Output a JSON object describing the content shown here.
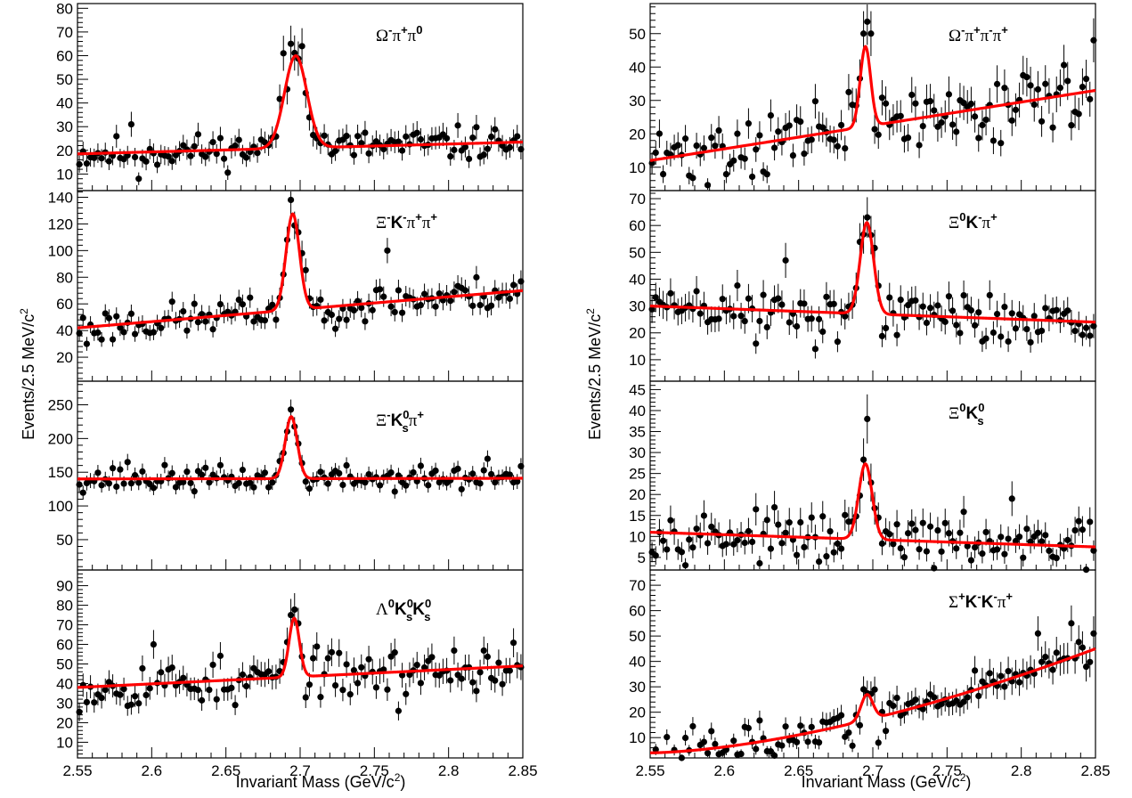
{
  "figure": {
    "left_ylabel": "Events/2.5 MeV/c",
    "right_ylabel": "Events/2.5 MeV/c",
    "ylabel_sup": "2",
    "left_xlabel": "Invariant Mass (GeV/c",
    "right_xlabel": "Invariant Mass (GeV/c",
    "xlabel_sup": "2",
    "xlabel_close": ")",
    "x_tick_labels": [
      "2.55",
      "2.6",
      "2.65",
      "2.7",
      "2.75",
      "2.8",
      "2.85"
    ]
  },
  "colors": {
    "fit": "#ff0000",
    "points": "#000000",
    "frame": "#000000"
  },
  "chart_data": [
    {
      "type": "scatter",
      "id": "omega-pi-pi0",
      "label_parts": [
        [
          "Ω",
          "n"
        ],
        [
          "-",
          "sup"
        ],
        [
          "π",
          "n"
        ],
        [
          "+",
          "sup"
        ],
        [
          "π",
          "n"
        ],
        [
          "0",
          "supb"
        ]
      ],
      "xlim": [
        2.55,
        2.85
      ],
      "ylim": [
        3,
        82
      ],
      "yticks": [
        10,
        20,
        30,
        40,
        50,
        60,
        70,
        80
      ],
      "fit": {
        "peak_mass": 2.697,
        "peak_height": 39,
        "width": 0.0075,
        "bg_start": 18.5,
        "bg_end": 23.5
      },
      "noise": 3.5,
      "seed": 11,
      "notable_points": [
        [
          2.694,
          65
        ],
        [
          2.69,
          61
        ],
        [
          2.7,
          64
        ],
        [
          2.587,
          31
        ],
        [
          2.592,
          8
        ]
      ]
    },
    {
      "type": "scatter",
      "id": "xi-k-pi-pi",
      "label_parts": [
        [
          "Ξ",
          "n"
        ],
        [
          "-",
          "sup"
        ],
        [
          "K",
          "b"
        ],
        [
          "-",
          "sup"
        ],
        [
          "π",
          "n"
        ],
        [
          "+",
          "sup"
        ],
        [
          "π",
          "n"
        ],
        [
          "+",
          "sup"
        ]
      ],
      "xlim": [
        2.55,
        2.85
      ],
      "ylim": [
        2,
        145
      ],
      "yticks": [
        20,
        40,
        60,
        80,
        100,
        120,
        140
      ],
      "fit": {
        "peak_mass": 2.695,
        "peak_height": 72,
        "width": 0.0045,
        "bg_start": 42,
        "bg_end": 70
      },
      "noise": 6.5,
      "seed": 23,
      "notable_points": [
        [
          2.694,
          138
        ],
        [
          2.7,
          98
        ],
        [
          2.76,
          100
        ],
        [
          2.556,
          30
        ]
      ]
    },
    {
      "type": "scatter",
      "id": "xi-ks-pi",
      "label_parts": [
        [
          "Ξ",
          "n"
        ],
        [
          "-",
          "sup"
        ],
        [
          "K",
          "b"
        ],
        [
          "0",
          "supsub"
        ],
        [
          "π",
          "n"
        ],
        [
          "+",
          "sup"
        ]
      ],
      "xlim": [
        2.55,
        2.85
      ],
      "ylim": [
        5,
        285
      ],
      "yticks": [
        50,
        100,
        150,
        200,
        250
      ],
      "fit": {
        "peak_mass": 2.694,
        "peak_height": 92,
        "width": 0.004,
        "bg_start": 140,
        "bg_end": 141
      },
      "noise": 9,
      "seed": 37,
      "notable_points": [
        [
          2.694,
          243
        ],
        [
          2.583,
          165
        ],
        [
          2.825,
          170
        ]
      ]
    },
    {
      "type": "scatter",
      "id": "lambda-ks-ks",
      "label_parts": [
        [
          "Λ",
          "n"
        ],
        [
          "0",
          "supb"
        ],
        [
          "K",
          "b"
        ],
        [
          "0",
          "supsub"
        ],
        [
          "K",
          "b"
        ],
        [
          "0",
          "supsub"
        ]
      ],
      "xlim": [
        2.55,
        2.85
      ],
      "ylim": [
        2,
        98
      ],
      "yticks": [
        10,
        20,
        30,
        40,
        50,
        60,
        70,
        80,
        90
      ],
      "fit": {
        "peak_mass": 2.696,
        "peak_height": 30,
        "width": 0.0035,
        "bg_start": 38,
        "bg_end": 49
      },
      "noise": 6,
      "seed": 53,
      "notable_points": [
        [
          2.695,
          75
        ],
        [
          2.601,
          60
        ],
        [
          2.656,
          29
        ],
        [
          2.765,
          26
        ]
      ]
    },
    {
      "type": "scatter",
      "id": "omega-pi-pi-pi",
      "label_parts": [
        [
          "Ω",
          "n"
        ],
        [
          "-",
          "sup"
        ],
        [
          "π",
          "n"
        ],
        [
          "+",
          "sup"
        ],
        [
          "π",
          "n"
        ],
        [
          "-",
          "sup"
        ],
        [
          "π",
          "n"
        ],
        [
          "+",
          "sup"
        ]
      ],
      "xlim": [
        2.55,
        2.85
      ],
      "ylim": [
        3,
        59
      ],
      "yticks": [
        10,
        20,
        30,
        40,
        50
      ],
      "fit": {
        "peak_mass": 2.695,
        "peak_height": 24,
        "width": 0.0035,
        "bg_start": 12,
        "bg_end": 33
      },
      "noise": 5,
      "seed": 71,
      "notable_points": [
        [
          2.694,
          50
        ],
        [
          2.698,
          50
        ],
        [
          2.849,
          48
        ]
      ]
    },
    {
      "type": "scatter",
      "id": "xi0-k-pi",
      "label_parts": [
        [
          "Ξ",
          "n"
        ],
        [
          "0",
          "supb"
        ],
        [
          "K",
          "b"
        ],
        [
          "-",
          "sup"
        ],
        [
          "π",
          "n"
        ],
        [
          "+",
          "sup"
        ]
      ],
      "xlim": [
        2.55,
        2.85
      ],
      "ylim": [
        2,
        73
      ],
      "yticks": [
        10,
        20,
        30,
        40,
        50,
        60,
        70
      ],
      "fit": {
        "peak_mass": 2.696,
        "peak_height": 34,
        "width": 0.0045,
        "bg_start": 30,
        "bg_end": 24
      },
      "noise": 5,
      "seed": 89,
      "notable_points": [
        [
          2.696,
          63
        ],
        [
          2.64,
          47
        ],
        [
          2.66,
          14
        ],
        [
          2.62,
          16
        ]
      ]
    },
    {
      "type": "scatter",
      "id": "xi0-ks",
      "label_parts": [
        [
          "Ξ",
          "n"
        ],
        [
          "0",
          "supb"
        ],
        [
          "K",
          "b"
        ],
        [
          "0",
          "supsub"
        ]
      ],
      "xlim": [
        2.55,
        2.85
      ],
      "ylim": [
        2,
        47
      ],
      "yticks": [
        5,
        10,
        15,
        20,
        25,
        30,
        35,
        40,
        45
      ],
      "fit": {
        "peak_mass": 2.695,
        "peak_height": 18,
        "width": 0.0045,
        "bg_start": 11,
        "bg_end": 7.5
      },
      "noise": 2.6,
      "seed": 97,
      "notable_points": [
        [
          2.696,
          38
        ],
        [
          2.793,
          19
        ],
        [
          2.665,
          4
        ]
      ]
    },
    {
      "type": "scatter",
      "id": "sigma-k-k-pi",
      "label_parts": [
        [
          "Σ",
          "n"
        ],
        [
          "+",
          "sup"
        ],
        [
          "K",
          "b"
        ],
        [
          "-",
          "sup"
        ],
        [
          "K",
          "b"
        ],
        [
          "-",
          "sup"
        ],
        [
          "π",
          "n"
        ],
        [
          "+",
          "sup"
        ]
      ],
      "xlim": [
        2.55,
        2.85
      ],
      "ylim": [
        2,
        76
      ],
      "yticks": [
        10,
        20,
        30,
        40,
        50,
        60,
        70
      ],
      "fit": {
        "peak_mass": 2.696,
        "peak_height": 10,
        "width": 0.004,
        "bg_start": 4,
        "bg_end": 45,
        "bg_curve": 1.6
      },
      "noise": 4,
      "seed": 113,
      "notable_points": [
        [
          2.833,
          55
        ],
        [
          2.812,
          51
        ],
        [
          2.695,
          29
        ],
        [
          2.703,
          8
        ]
      ]
    }
  ]
}
